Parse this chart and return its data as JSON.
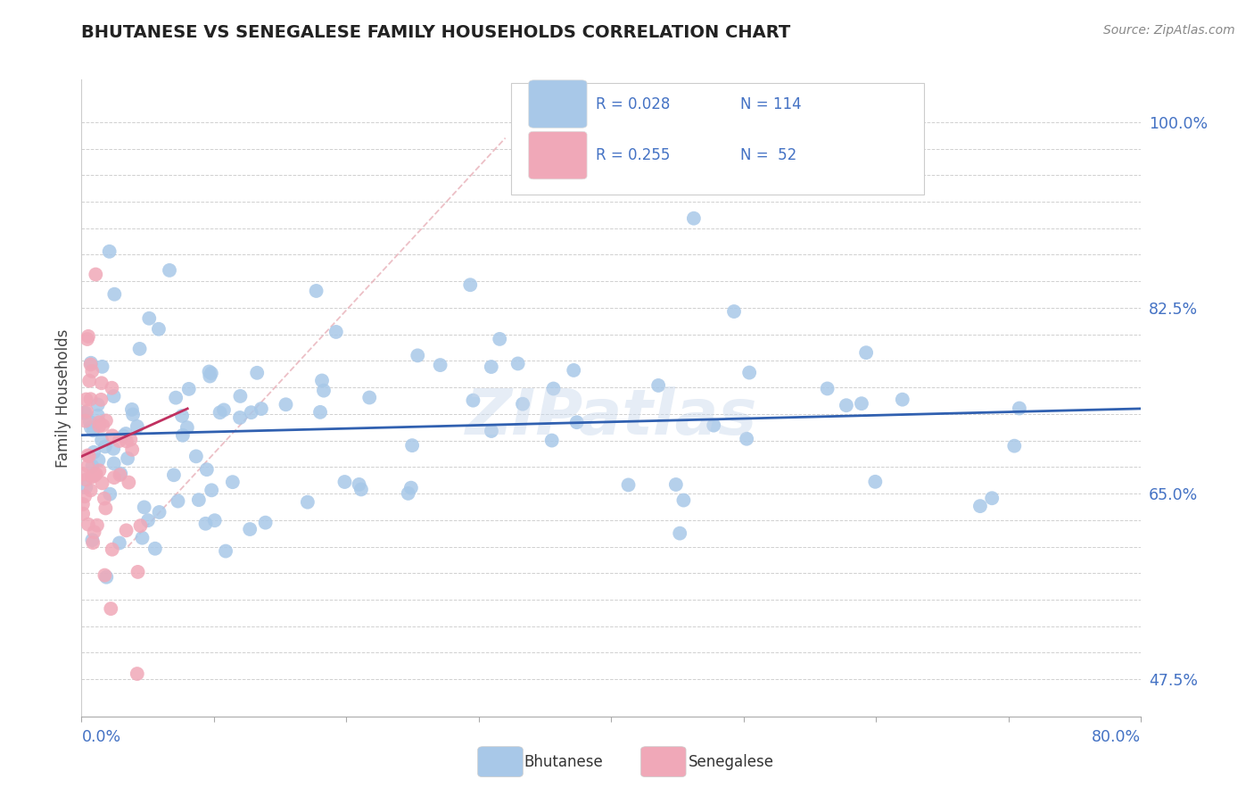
{
  "title": "BHUTANESE VS SENEGALESE FAMILY HOUSEHOLDS CORRELATION CHART",
  "source_text": "Source: ZipAtlas.com",
  "ylabel": "Family Households",
  "xlim": [
    0.0,
    0.8
  ],
  "ylim": [
    0.44,
    1.04
  ],
  "bhutanese_color": "#a8c8e8",
  "senegalese_color": "#f0a8b8",
  "trend_bhutanese_color": "#3060b0",
  "trend_senegalese_color": "#c03060",
  "diagonal_color": "#e8b0b8",
  "ytick_positions": [
    0.475,
    0.5,
    0.525,
    0.55,
    0.575,
    0.6,
    0.625,
    0.65,
    0.675,
    0.7,
    0.725,
    0.75,
    0.775,
    0.8,
    0.825,
    0.85,
    0.875,
    0.9,
    0.925,
    0.95,
    0.975,
    1.0
  ],
  "ytick_shown": {
    "0.475": "47.5%",
    "0.650": "65.0%",
    "0.825": "82.5%",
    "1.000": "100.0%"
  },
  "legend_r_bhutanese": "R = 0.028",
  "legend_n_bhutanese": "N = 114",
  "legend_r_senegalese": "R = 0.255",
  "legend_n_senegalese": "N =  52",
  "watermark": "ZIPatlas",
  "label_color": "#4472c4",
  "grid_color": "#d0d0d0",
  "bhutanese_seed": 42,
  "senegalese_seed": 99
}
